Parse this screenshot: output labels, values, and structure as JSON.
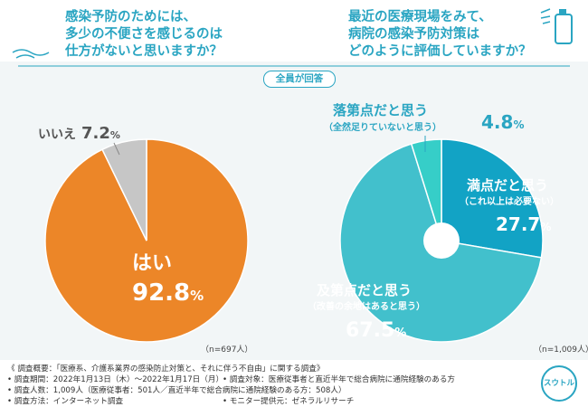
{
  "question_left": "感染予防のためには、\n多少の不便さを感じるのは\n仕方がないと思いますか？",
  "question_right": "最近の医療現場をみて、\n病院の感染予防対策は\nどのように評価していますか？",
  "all_answered": "全員が回答",
  "chart_data": [
    {
      "type": "pie",
      "title": "感染予防のためには、多少の不便さを感じるのは仕方がないと思いますか？",
      "categories": [
        "はい",
        "いいえ"
      ],
      "values": [
        92.8,
        7.2
      ],
      "colors": [
        "#ec8628",
        "#c6c6c6"
      ],
      "n_label": "（n=697人）"
    },
    {
      "type": "pie",
      "title": "最近の医療現場をみて、病院の感染予防対策はどのように評価していますか？",
      "categories": [
        "満点だと思う",
        "及第点だと思う",
        "落第点だと思う"
      ],
      "subtitles": [
        "（これ以上は必要ない）",
        "（改善の余地はあると思う）",
        "（全然足りていないと思う）"
      ],
      "values": [
        27.7,
        67.5,
        4.8
      ],
      "colors": [
        "#12a3c5",
        "#42c0cc",
        "#36cec8"
      ],
      "n_label": "（n=1,009人）"
    }
  ],
  "footer": {
    "overview": "《 調査概要：「医療系、介護系業界の感染防止対策と、それに伴う不自由」に関する調査》",
    "period": "• 調査期間：2022年1月13日（木）〜2022年1月17日（月）",
    "target": "• 調査対象：医療従事者と直近半年で総合病院に通院経験のある方",
    "count": "• 調査人数：1,009人（医療従事者：501人／直近半年で総合病院に通院経験のある方：508人）",
    "method": "• 調査方法：インターネット調査",
    "monitor": "• モニター提供元：ゼネラルリサーチ"
  },
  "logo_text": "スウトル"
}
